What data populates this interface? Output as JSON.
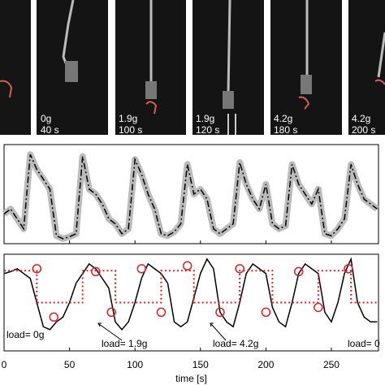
{
  "photos": [
    {
      "weight": "0g",
      "time": "40 s"
    },
    {
      "weight": "1.9g",
      "time": "100 s"
    },
    {
      "weight": "1.9g",
      "time": "120 s"
    },
    {
      "weight": "4.2g",
      "time": "180 s"
    },
    {
      "weight": "4.2g",
      "time": "200 s"
    }
  ],
  "chart_data": [
    {
      "type": "line",
      "xlim": [
        0,
        286
      ],
      "ylim": [
        0,
        1
      ],
      "xticks": [
        0,
        50,
        100,
        150,
        200,
        250
      ],
      "series": [
        {
          "color": "#000000",
          "style": "dashdot",
          "band": "#bbbbbb",
          "x": [
            0,
            5,
            10,
            15,
            20,
            25,
            30,
            35,
            40,
            45,
            50,
            55,
            60,
            65,
            70,
            75,
            80,
            85,
            90,
            95,
            100,
            105,
            110,
            115,
            120,
            125,
            130,
            135,
            140,
            145,
            150,
            155,
            160,
            165,
            170,
            175,
            180,
            185,
            190,
            195,
            200,
            205,
            210,
            215,
            220,
            225,
            230,
            235,
            240,
            245,
            250,
            255,
            260,
            265,
            270,
            275,
            280,
            285
          ],
          "values": [
            0.3,
            0.35,
            0.25,
            0.15,
            0.9,
            0.75,
            0.65,
            0.55,
            0.08,
            0.05,
            0.07,
            0.1,
            0.88,
            0.55,
            0.5,
            0.4,
            0.25,
            0.2,
            0.1,
            0.15,
            0.85,
            0.7,
            0.5,
            0.35,
            0.1,
            0.08,
            0.12,
            0.2,
            0.8,
            0.5,
            0.55,
            0.45,
            0.15,
            0.1,
            0.15,
            0.2,
            0.82,
            0.6,
            0.45,
            0.35,
            0.6,
            0.2,
            0.15,
            0.18,
            0.8,
            0.6,
            0.5,
            0.4,
            0.55,
            0.1,
            0.08,
            0.15,
            0.25,
            0.8,
            0.6,
            0.45,
            0.4,
            0.35
          ]
        }
      ]
    },
    {
      "type": "line",
      "xlim": [
        0,
        286
      ],
      "ylim": [
        0,
        1
      ],
      "xticks": [
        0,
        50,
        100,
        150,
        200,
        250
      ],
      "xlabel": "time [s]",
      "series": [
        {
          "color": "#000000",
          "style": "solid",
          "x": [
            0,
            5,
            10,
            15,
            20,
            25,
            30,
            35,
            40,
            45,
            50,
            55,
            60,
            65,
            70,
            75,
            80,
            85,
            90,
            95,
            100,
            105,
            110,
            115,
            120,
            125,
            130,
            135,
            140,
            145,
            150,
            155,
            160,
            165,
            170,
            175,
            180,
            185,
            190,
            195,
            200,
            205,
            210,
            215,
            220,
            225,
            230,
            235,
            240,
            245,
            250,
            255,
            260,
            265,
            270,
            275,
            280,
            285
          ],
          "values": [
            0.8,
            0.82,
            0.85,
            0.8,
            0.75,
            0.5,
            0.25,
            0.22,
            0.3,
            0.35,
            0.5,
            0.7,
            0.8,
            0.9,
            0.85,
            0.75,
            0.65,
            0.3,
            0.22,
            0.3,
            0.5,
            0.75,
            0.9,
            0.85,
            0.8,
            0.7,
            0.3,
            0.25,
            0.3,
            0.55,
            0.8,
            0.95,
            0.85,
            0.4,
            0.3,
            0.25,
            0.5,
            0.8,
            0.9,
            0.85,
            0.8,
            0.45,
            0.3,
            0.25,
            0.5,
            0.8,
            0.9,
            0.85,
            0.8,
            0.4,
            0.3,
            0.5,
            0.8,
            0.95,
            0.5,
            0.35,
            0.3,
            0.3
          ]
        },
        {
          "color": "#e02020",
          "style": "dotted",
          "x": [
            0,
            25,
            25,
            60,
            60,
            85,
            85,
            120,
            120,
            145,
            145,
            180,
            180,
            205,
            205,
            240,
            240,
            265,
            265,
            286
          ],
          "values": [
            0.83,
            0.83,
            0.5,
            0.5,
            0.83,
            0.83,
            0.5,
            0.5,
            0.83,
            0.83,
            0.5,
            0.5,
            0.83,
            0.83,
            0.5,
            0.5,
            0.83,
            0.83,
            0.5,
            0.5
          ]
        },
        {
          "color": "#e02020",
          "style": "circles",
          "x": [
            25,
            38,
            70,
            82,
            105,
            120,
            140,
            165,
            180,
            200,
            225,
            240,
            263
          ],
          "values": [
            0.85,
            0.35,
            0.82,
            0.4,
            0.85,
            0.4,
            0.88,
            0.4,
            0.85,
            0.4,
            0.82,
            0.45,
            0.85
          ]
        }
      ],
      "annotations": [
        "load= 0g",
        "load= 1.9g",
        "load= 4.2g",
        "load= 0"
      ]
    }
  ]
}
